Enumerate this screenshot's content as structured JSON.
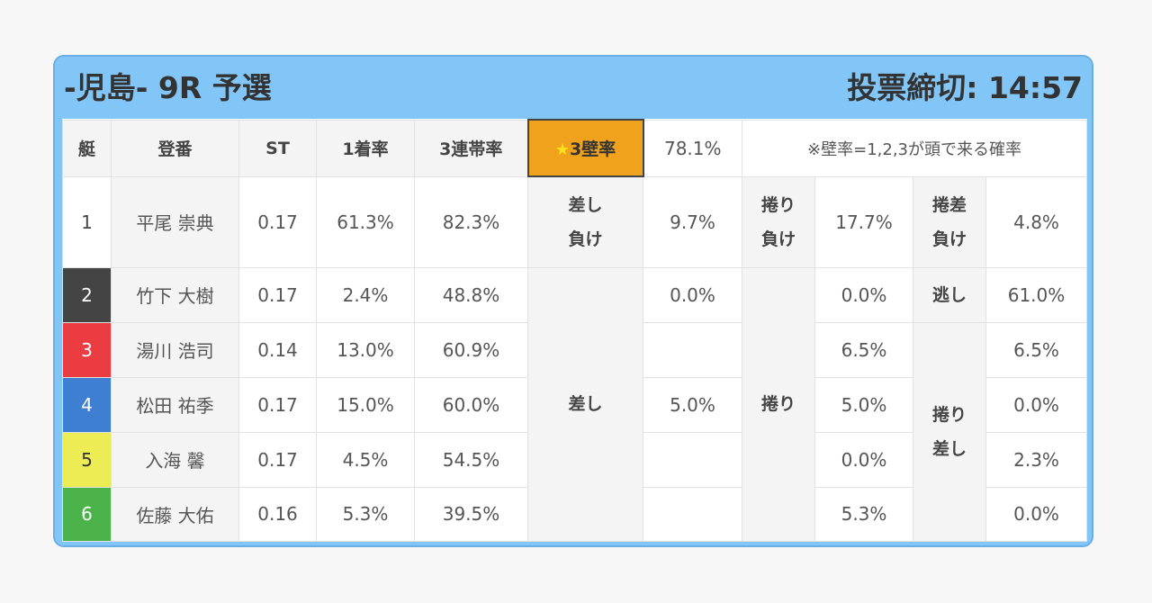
{
  "header": {
    "title": "-児島- 9R 予選",
    "deadline": "投票締切: 14:57"
  },
  "table": {
    "headers": {
      "boat": "艇",
      "name": "登番",
      "st": "ST",
      "first_rate": "1着率",
      "top3_rate": "3連帯率",
      "wall_label_star": "★",
      "wall_label": "3壁率",
      "wall_value": "78.1%",
      "wall_note": "※壁率=1,2,3が頭で来る確率"
    },
    "patterns": {
      "sashi_make": [
        "差し",
        "負け"
      ],
      "makuri_make": [
        "捲り",
        "負け"
      ],
      "makurizashi_make": [
        "捲差",
        "負け"
      ],
      "sashi": "差し",
      "makuri": "捲り",
      "nige": "逃し",
      "makurizashi": [
        "捲り",
        "差し"
      ]
    },
    "rows": [
      {
        "boat": "1",
        "name": "平尾 崇典",
        "st": "0.17",
        "first": "61.3%",
        "top3": "82.3%",
        "sashi": "9.7%",
        "makuri": "17.7%",
        "makurizashi": "4.8%"
      },
      {
        "boat": "2",
        "name": "竹下 大樹",
        "st": "0.17",
        "first": "2.4%",
        "top3": "48.8%",
        "sashi": "0.0%",
        "makuri": "0.0%",
        "makurizashi": "61.0%"
      },
      {
        "boat": "3",
        "name": "湯川 浩司",
        "st": "0.14",
        "first": "13.0%",
        "top3": "60.9%",
        "sashi": "",
        "makuri": "6.5%",
        "makurizashi": "6.5%"
      },
      {
        "boat": "4",
        "name": "松田 祐季",
        "st": "0.17",
        "first": "15.0%",
        "top3": "60.0%",
        "sashi": "5.0%",
        "makuri": "5.0%",
        "makurizashi": "0.0%"
      },
      {
        "boat": "5",
        "name": "入海 馨",
        "st": "0.17",
        "first": "4.5%",
        "top3": "54.5%",
        "sashi": "",
        "makuri": "0.0%",
        "makurizashi": "2.3%"
      },
      {
        "boat": "6",
        "name": "佐藤 大佑",
        "st": "0.16",
        "first": "5.3%",
        "top3": "39.5%",
        "sashi": "",
        "makuri": "5.3%",
        "makurizashi": "0.0%"
      }
    ]
  },
  "colors": {
    "card_bg": "#82c6f7",
    "star_bg": "#f0a21c",
    "boat_1": "#ffffff",
    "boat_2": "#444444",
    "boat_3": "#ea3c41",
    "boat_4": "#3f7fd2",
    "boat_5": "#eced55",
    "boat_6": "#4bb34a"
  }
}
